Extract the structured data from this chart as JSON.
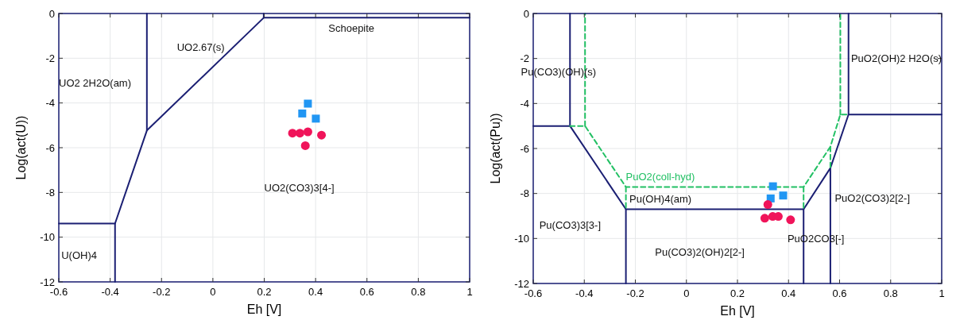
{
  "chart_data": [
    {
      "type": "line",
      "xlabel": "Eh [V]",
      "ylabel": "Log(act(U))",
      "xlim": [
        -0.6,
        1
      ],
      "ylim": [
        -12,
        0
      ],
      "xticks": [
        -0.6,
        -0.4,
        -0.2,
        0,
        0.2,
        0.4,
        0.6,
        0.8,
        1
      ],
      "yticks": [
        -12,
        -10,
        -8,
        -6,
        -4,
        -2,
        0
      ],
      "grid": true,
      "series": [
        {
          "color": "#1b1f73",
          "marker": "none",
          "line_style": "solid",
          "x": [
            -0.257,
            -0.257
          ],
          "values": [
            0,
            -5.23
          ]
        },
        {
          "color": "#1b1f73",
          "marker": "none",
          "line_style": "solid",
          "x": [
            -0.381,
            -0.257,
            0.198,
            1
          ],
          "values": [
            -9.39,
            -5.23,
            -0.19,
            -0.19
          ]
        },
        {
          "color": "#1b1f73",
          "marker": "none",
          "line_style": "solid",
          "x": [
            0.198,
            0.198
          ],
          "values": [
            -0.19,
            0
          ]
        },
        {
          "color": "#1b1f73",
          "marker": "none",
          "line_style": "solid",
          "x": [
            -0.6,
            -0.381,
            -0.381
          ],
          "values": [
            -9.39,
            -9.39,
            -12
          ]
        },
        {
          "type": "scatter",
          "color": "#2196f3",
          "marker": "square",
          "x": [
            0.37,
            0.348,
            0.401
          ],
          "values": [
            -4.03,
            -4.47,
            -4.7
          ]
        },
        {
          "type": "scatter",
          "color": "#f0145a",
          "marker": "circle",
          "x": [
            0.31,
            0.339,
            0.37,
            0.423,
            0.36
          ],
          "values": [
            -5.35,
            -5.35,
            -5.29,
            -5.44,
            -5.91
          ]
        }
      ],
      "annotations": [
        "Schoepite",
        "UO2.67(s)",
        "UO2 2H2O(am)",
        "U(OH)4",
        "UO2(CO3)3[4-]"
      ]
    },
    {
      "type": "line",
      "xlabel": "Eh [V]",
      "ylabel": "Log(act(Pu))",
      "xlim": [
        -0.6,
        1
      ],
      "ylim": [
        -12,
        0
      ],
      "xticks": [
        -0.6,
        -0.4,
        -0.2,
        0,
        0.2,
        0.4,
        0.6,
        0.8,
        1
      ],
      "yticks": [
        -12,
        -10,
        -8,
        -6,
        -4,
        -2,
        0
      ],
      "grid": true,
      "series": [
        {
          "color": "#1b1f73",
          "marker": "none",
          "line_style": "solid",
          "x": [
            -0.6,
            -0.456,
            -0.237,
            0.459,
            0.564,
            0.635,
            1
          ],
          "values": [
            -5,
            -5,
            -8.7,
            -8.7,
            -6.87,
            -4.49,
            -4.49
          ]
        },
        {
          "color": "#1b1f73",
          "marker": "none",
          "line_style": "solid",
          "x": [
            -0.456,
            -0.456
          ],
          "values": [
            -5,
            0
          ]
        },
        {
          "color": "#1b1f73",
          "marker": "none",
          "line_style": "solid",
          "x": [
            0.635,
            0.635
          ],
          "values": [
            -4.49,
            0
          ]
        },
        {
          "color": "#1b1f73",
          "marker": "none",
          "line_style": "solid",
          "x": [
            -0.237,
            -0.237
          ],
          "values": [
            -8.7,
            -12
          ]
        },
        {
          "color": "#1b1f73",
          "marker": "none",
          "line_style": "solid",
          "x": [
            0.459,
            0.459
          ],
          "values": [
            -8.7,
            -12
          ]
        },
        {
          "color": "#1b1f73",
          "marker": "none",
          "line_style": "solid",
          "x": [
            0.564,
            0.564
          ],
          "values": [
            -6.87,
            -12
          ]
        },
        {
          "name": "PuO2(coll-hyd)",
          "color": "#22c064",
          "marker": "none",
          "line_style": "dashed",
          "x": [
            -0.456,
            -0.397,
            -0.237,
            0.459,
            0.564,
            0.603,
            0.635
          ],
          "values": [
            -5,
            -5,
            -7.71,
            -7.71,
            -5.92,
            -4.49,
            -4.49
          ]
        },
        {
          "color": "#22c064",
          "marker": "none",
          "line_style": "dashed",
          "x": [
            -0.397,
            -0.397
          ],
          "values": [
            -5,
            0
          ]
        },
        {
          "color": "#22c064",
          "marker": "none",
          "line_style": "dashed",
          "x": [
            0.603,
            0.603
          ],
          "values": [
            -4.49,
            0
          ]
        },
        {
          "color": "#22c064",
          "marker": "none",
          "line_style": "dashed",
          "x": [
            -0.237,
            -0.237
          ],
          "values": [
            -7.71,
            -8.7
          ]
        },
        {
          "color": "#22c064",
          "marker": "none",
          "line_style": "dashed",
          "x": [
            0.459,
            0.459
          ],
          "values": [
            -7.71,
            -8.7
          ]
        },
        {
          "color": "#22c064",
          "marker": "none",
          "line_style": "dashed",
          "x": [
            0.564,
            0.564
          ],
          "values": [
            -5.92,
            -6.87
          ]
        },
        {
          "type": "scatter",
          "color": "#2196f3",
          "marker": "square",
          "x": [
            0.339,
            0.33,
            0.379
          ],
          "values": [
            -7.68,
            -8.22,
            -8.09
          ]
        },
        {
          "type": "scatter",
          "color": "#f0145a",
          "marker": "circle",
          "x": [
            0.319,
            0.307,
            0.338,
            0.36,
            0.408
          ],
          "values": [
            -8.49,
            -9.1,
            -9.02,
            -9.02,
            -9.17
          ]
        }
      ],
      "annotations": [
        "Pu(CO3)(OH)(s)",
        "PuO2(OH)2 H2O(s)",
        "Pu(OH)4(am)",
        "Pu(CO3)3[3-]",
        "PuO2(CO3)2[2-]",
        "PuO2CO3[-]",
        "Pu(CO3)2(OH)2[2-]"
      ]
    }
  ]
}
